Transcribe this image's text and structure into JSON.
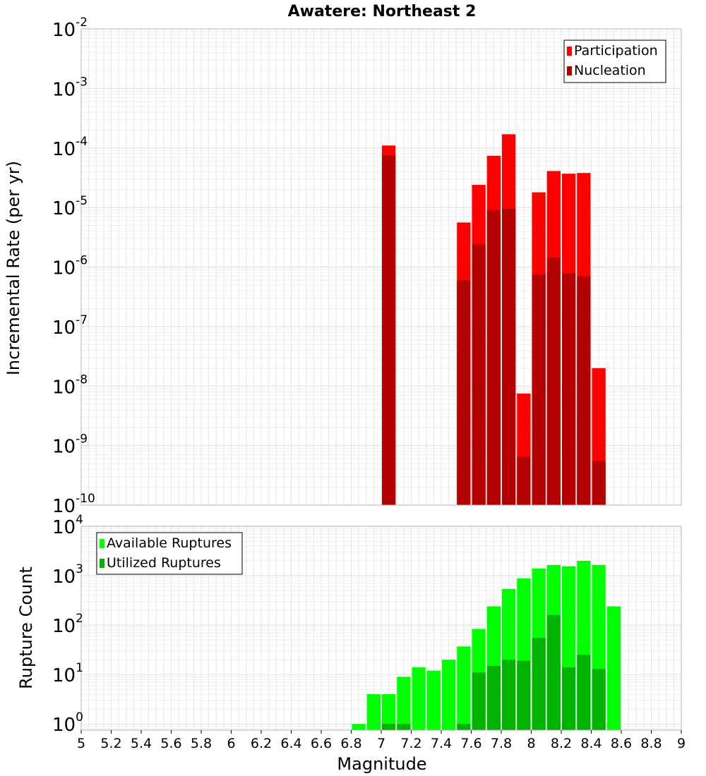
{
  "title": "Awatere: Northeast 2",
  "colors": {
    "participation": "#ff0000",
    "nucleation": "#b30000",
    "available": "#00ff00",
    "utilized": "#00b300",
    "grid": "#e6e6e6",
    "frame": "#b3b3b3"
  },
  "x_axis": {
    "label": "Magnitude",
    "ticks": [
      "5",
      "5.2",
      "5.4",
      "5.6",
      "5.8",
      "6",
      "6.2",
      "6.4",
      "6.6",
      "6.8",
      "7",
      "7.2",
      "7.4",
      "7.6",
      "7.8",
      "8",
      "8.2",
      "8.4",
      "8.6",
      "8.8",
      "9"
    ]
  },
  "chart_data": [
    {
      "type": "bar",
      "title": "Awatere: Northeast 2",
      "xlabel": "Magnitude",
      "ylabel": "Incremental Rate (per yr)",
      "xlim": [
        5,
        9
      ],
      "ylim": [
        1e-10,
        0.01
      ],
      "yscale": "log",
      "grid": true,
      "legend_position": "top-right",
      "bar_width": 0.1,
      "x": [
        7.05,
        7.55,
        7.65,
        7.75,
        7.85,
        7.95,
        8.05,
        8.15,
        8.25,
        8.35,
        8.45
      ],
      "series": [
        {
          "name": "Participation",
          "values": [
            0.00011,
            5.6e-06,
            2.4e-05,
            7.4e-05,
            0.00017,
            7.5e-09,
            1.8e-05,
            4.1e-05,
            3.7e-05,
            3.8e-05,
            2e-08
          ]
        },
        {
          "name": "Nucleation",
          "values": [
            7.5e-05,
            6e-07,
            2.4e-06,
            9e-06,
            9.5e-06,
            6.5e-10,
            7.5e-07,
            1.45e-06,
            7.8e-07,
            7e-07,
            5.5e-10
          ]
        }
      ],
      "yticks": [
        {
          "base": "10",
          "exp": "-2"
        },
        {
          "base": "10",
          "exp": "-3"
        },
        {
          "base": "10",
          "exp": "-4"
        },
        {
          "base": "10",
          "exp": "-5"
        },
        {
          "base": "10",
          "exp": "-6"
        },
        {
          "base": "10",
          "exp": "-7"
        },
        {
          "base": "10",
          "exp": "-8"
        },
        {
          "base": "10",
          "exp": "-9"
        },
        {
          "base": "10",
          "exp": "-10"
        }
      ]
    },
    {
      "type": "bar",
      "xlabel": "Magnitude",
      "ylabel": "Rupture Count",
      "xlim": [
        5,
        9
      ],
      "ylim": [
        0.75,
        10000
      ],
      "yscale": "log",
      "grid": true,
      "legend_position": "top-left",
      "bar_width": 0.1,
      "x": [
        6.85,
        6.95,
        7.05,
        7.15,
        7.25,
        7.35,
        7.45,
        7.55,
        7.65,
        7.75,
        7.85,
        7.95,
        8.05,
        8.15,
        8.25,
        8.35,
        8.45,
        8.55
      ],
      "series": [
        {
          "name": "Available Ruptures",
          "values": [
            1,
            4,
            4,
            9,
            14,
            12,
            20,
            37,
            84,
            240,
            540,
            880,
            1400,
            1650,
            1550,
            2000,
            1650,
            240
          ]
        },
        {
          "name": "Utilized Ruptures",
          "values": [
            0,
            0,
            1,
            1,
            0,
            0,
            0,
            1,
            11,
            15,
            20,
            19,
            55,
            160,
            14,
            25,
            13,
            0
          ]
        }
      ],
      "yticks": [
        {
          "base": "10",
          "exp": "4"
        },
        {
          "base": "10",
          "exp": "3"
        },
        {
          "base": "10",
          "exp": "2"
        },
        {
          "base": "10",
          "exp": "1"
        },
        {
          "base": "10",
          "exp": "0"
        }
      ]
    }
  ]
}
